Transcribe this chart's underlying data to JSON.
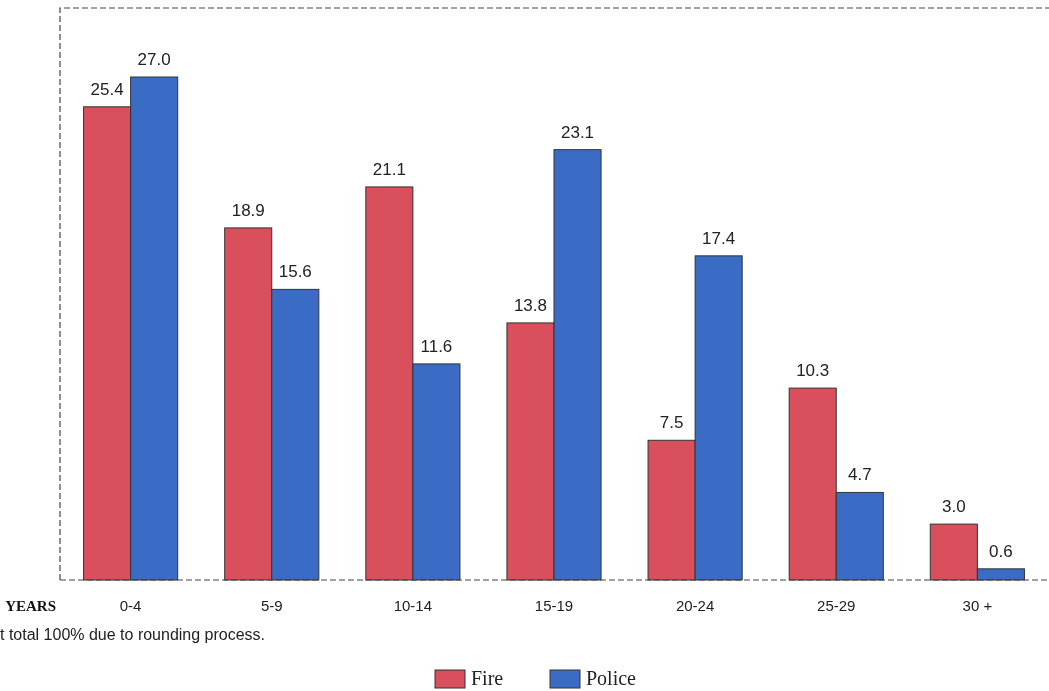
{
  "chart_data": {
    "type": "bar",
    "xlabel": "YEARS",
    "categories": [
      "0-4",
      "5-9",
      "10-14",
      "15-19",
      "20-24",
      "25-29",
      "30 +"
    ],
    "series": [
      {
        "name": "Fire",
        "color": "#d94f5c",
        "values": [
          25.4,
          18.9,
          21.1,
          13.8,
          7.5,
          10.3,
          3.0
        ],
        "value_labels": [
          "25.4",
          "18.9",
          "21.1",
          "13.8",
          "7.5",
          "10.3",
          "3.0"
        ]
      },
      {
        "name": "Police",
        "color": "#3a6cc6",
        "values": [
          27.0,
          15.6,
          11.6,
          23.1,
          17.4,
          4.7,
          0.6
        ],
        "value_labels": [
          "27.0",
          "15.6",
          "11.6",
          "23.1",
          "17.4",
          "4.7",
          "0.6"
        ]
      }
    ],
    "annotations": [
      "t total 100% due to rounding process."
    ],
    "legend": "bottom"
  }
}
